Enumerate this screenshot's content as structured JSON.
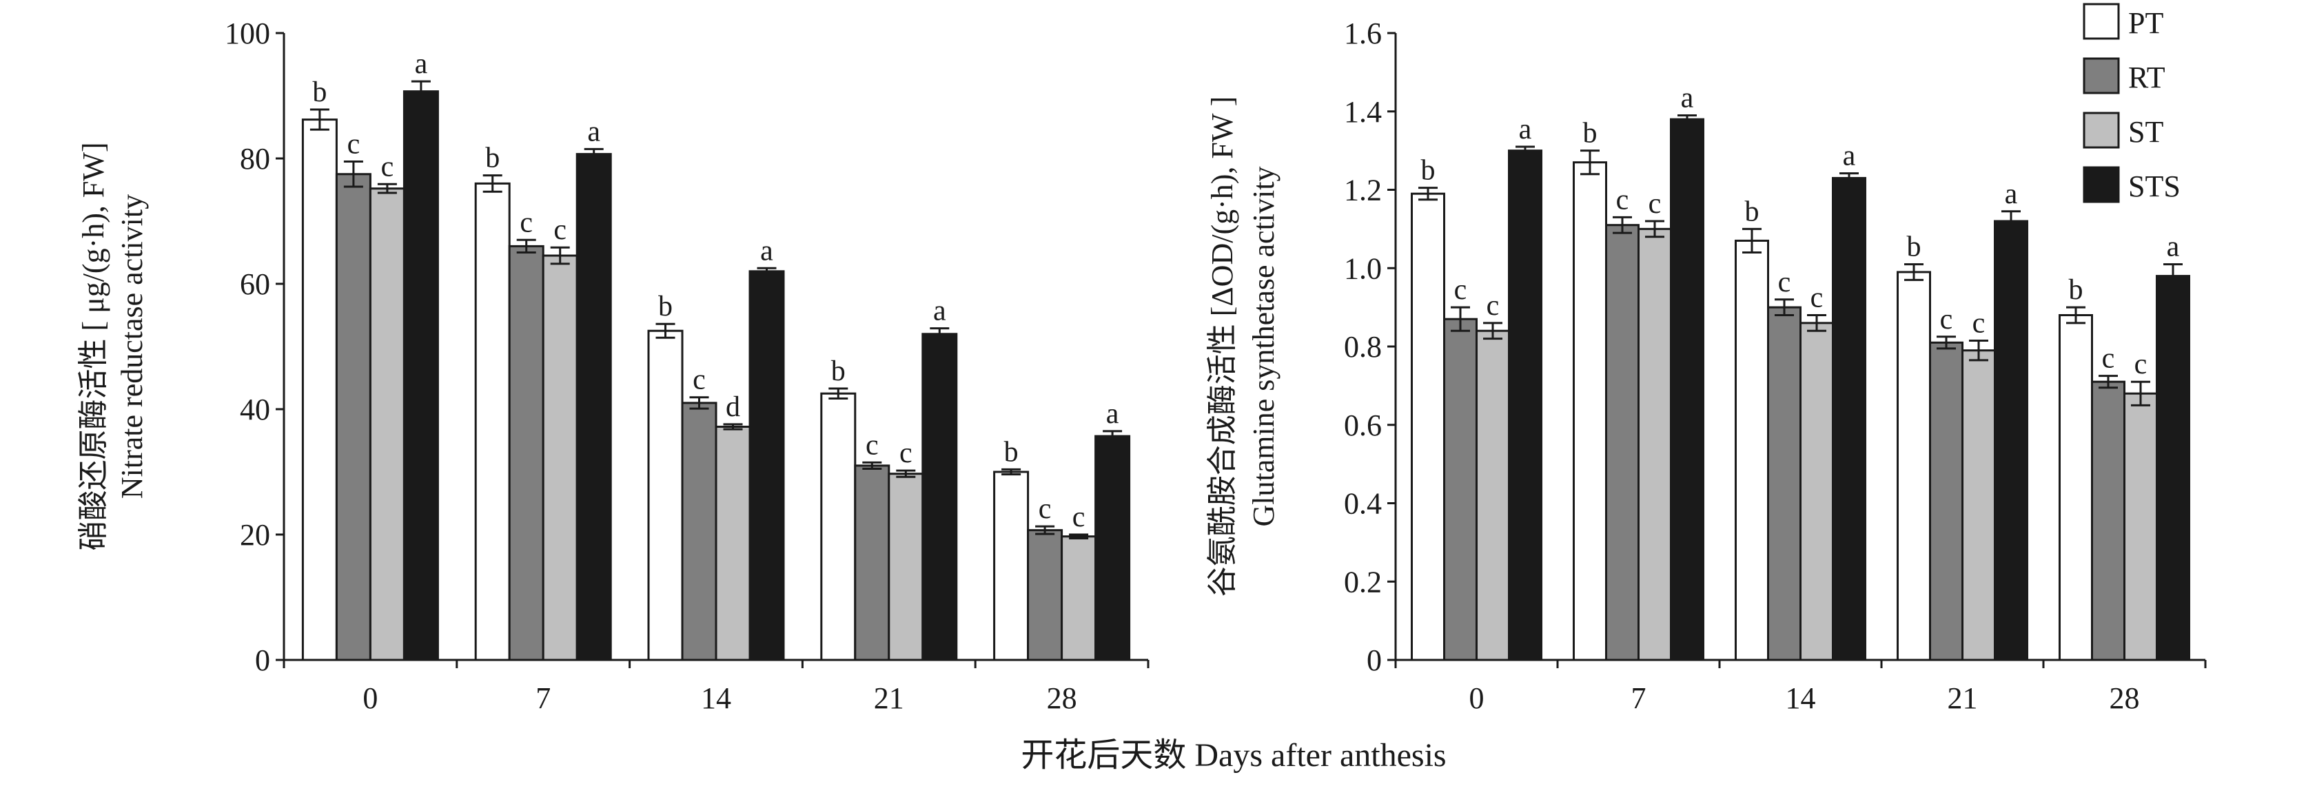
{
  "xlabel": "开花后天数 Days after anthesis",
  "legend": [
    {
      "name": "PT",
      "color": "#ffffff"
    },
    {
      "name": "RT",
      "color": "#7f7f7f"
    },
    {
      "name": "ST",
      "color": "#bfbfbf"
    },
    {
      "name": "STS",
      "color": "#1a1a1a"
    }
  ],
  "chart_data": [
    {
      "type": "bar",
      "ylabel_cn": "硝酸还原酶活性 [ μg/(g·h), FW]",
      "ylabel_en": "Nitrate reductase activity",
      "categories": [
        "0",
        "7",
        "14",
        "21",
        "28"
      ],
      "ylim": [
        0,
        100
      ],
      "yticks": [
        "0",
        "20",
        "40",
        "60",
        "80",
        "100"
      ],
      "series": [
        {
          "name": "PT",
          "values": [
            86.2,
            76.0,
            52.5,
            42.5,
            30.0
          ],
          "errors": [
            1.6,
            1.3,
            1.1,
            0.8,
            0.4
          ],
          "letters": [
            "b",
            "b",
            "b",
            "b",
            "b"
          ]
        },
        {
          "name": "RT",
          "values": [
            77.5,
            66.0,
            41.0,
            31.0,
            20.7
          ],
          "errors": [
            2.0,
            1.0,
            0.9,
            0.5,
            0.6
          ],
          "letters": [
            "c",
            "c",
            "c",
            "c",
            "c"
          ]
        },
        {
          "name": "ST",
          "values": [
            75.2,
            64.5,
            37.2,
            29.7,
            19.7
          ],
          "errors": [
            0.7,
            1.3,
            0.4,
            0.5,
            0.3
          ],
          "letters": [
            "c",
            "c",
            "d",
            "c",
            "c"
          ]
        },
        {
          "name": "STS",
          "values": [
            90.7,
            80.7,
            62.0,
            52.0,
            35.7
          ],
          "errors": [
            1.6,
            0.8,
            0.5,
            0.9,
            0.8
          ],
          "letters": [
            "a",
            "a",
            "a",
            "a",
            "a"
          ]
        }
      ]
    },
    {
      "type": "bar",
      "ylabel_cn": "谷氨酰胺合成酶活性 [ΔOD/(g·h), FW ]",
      "ylabel_en": "Glutamine synthetase activity",
      "categories": [
        "0",
        "7",
        "14",
        "21",
        "28"
      ],
      "ylim": [
        0,
        1.6
      ],
      "yticks": [
        "0",
        "0.2",
        "0.4",
        "0.6",
        "0.8",
        "1.0",
        "1.2",
        "1.4",
        "1.6"
      ],
      "series": [
        {
          "name": "PT",
          "values": [
            1.19,
            1.27,
            1.07,
            0.99,
            0.88
          ],
          "errors": [
            0.015,
            0.03,
            0.03,
            0.02,
            0.02
          ],
          "letters": [
            "b",
            "b",
            "b",
            "b",
            "b"
          ]
        },
        {
          "name": "RT",
          "values": [
            0.87,
            1.11,
            0.9,
            0.81,
            0.71
          ],
          "errors": [
            0.03,
            0.02,
            0.02,
            0.015,
            0.015
          ],
          "letters": [
            "c",
            "c",
            "c",
            "c",
            "c"
          ]
        },
        {
          "name": "ST",
          "values": [
            0.84,
            1.1,
            0.86,
            0.79,
            0.68
          ],
          "errors": [
            0.02,
            0.02,
            0.02,
            0.025,
            0.03
          ],
          "letters": [
            "c",
            "c",
            "c",
            "c",
            "c"
          ]
        },
        {
          "name": "STS",
          "values": [
            1.3,
            1.38,
            1.23,
            1.12,
            0.98
          ],
          "errors": [
            0.01,
            0.01,
            0.012,
            0.025,
            0.03
          ],
          "letters": [
            "a",
            "a",
            "a",
            "a",
            "a"
          ]
        }
      ]
    }
  ]
}
